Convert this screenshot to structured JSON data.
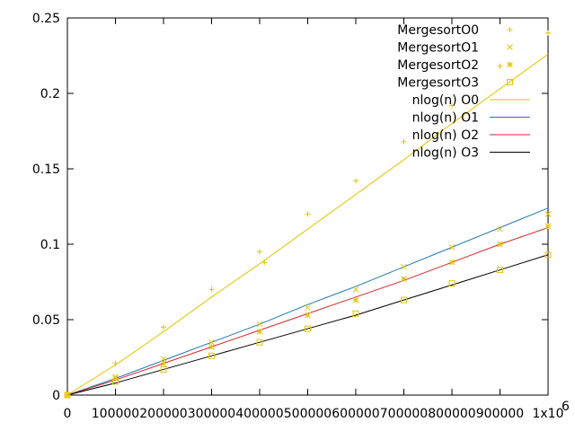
{
  "chart_data": {
    "type": "scatter",
    "title": "",
    "xlabel": "",
    "ylabel": "",
    "xlim": [
      0,
      1000000
    ],
    "ylim": [
      0,
      0.25
    ],
    "x_ticks": [
      0,
      100000,
      200000,
      300000,
      400000,
      500000,
      600000,
      700000,
      800000,
      900000,
      1000000
    ],
    "x_tick_labels": [
      "0",
      "100000",
      "200000",
      "300000",
      "400000",
      "500000",
      "600000",
      "700000",
      "800000",
      "900000",
      "1x10"
    ],
    "x_exponent_label": "6",
    "y_ticks": [
      0,
      0.05,
      0.1,
      0.15,
      0.2,
      0.25
    ],
    "y_tick_labels": [
      "0",
      "0.05",
      "0.1",
      "0.15",
      "0.2",
      "0.25"
    ],
    "grid": false,
    "legend_position": "top-right",
    "series": [
      {
        "name": "MergesortO0",
        "kind": "points",
        "marker": "plus",
        "color": "#e6c300",
        "x": [
          0,
          100000,
          200000,
          300000,
          400000,
          410000,
          500000,
          600000,
          700000,
          800000,
          900000,
          1000000
        ],
        "y": [
          0,
          0.021,
          0.045,
          0.07,
          0.095,
          0.088,
          0.12,
          0.142,
          0.168,
          0.192,
          0.218,
          0.24
        ]
      },
      {
        "name": "MergesortO1",
        "kind": "points",
        "marker": "cross",
        "color": "#e6c300",
        "x": [
          0,
          100000,
          200000,
          300000,
          400000,
          500000,
          600000,
          700000,
          800000,
          900000,
          1000000
        ],
        "y": [
          0,
          0.012,
          0.024,
          0.035,
          0.047,
          0.058,
          0.07,
          0.085,
          0.098,
          0.11,
          0.12
        ]
      },
      {
        "name": "MergesortO2",
        "kind": "points",
        "marker": "asterisk",
        "color": "#e6c300",
        "x": [
          0,
          100000,
          200000,
          300000,
          400000,
          500000,
          600000,
          700000,
          800000,
          900000,
          1000000
        ],
        "y": [
          0,
          0.011,
          0.021,
          0.032,
          0.042,
          0.053,
          0.063,
          0.077,
          0.088,
          0.1,
          0.112
        ]
      },
      {
        "name": "MergesortO3",
        "kind": "points",
        "marker": "square",
        "color": "#e6c300",
        "x": [
          0,
          100000,
          200000,
          300000,
          400000,
          500000,
          600000,
          700000,
          800000,
          900000,
          1000000
        ],
        "y": [
          0,
          0.009,
          0.017,
          0.026,
          0.035,
          0.044,
          0.054,
          0.063,
          0.074,
          0.083,
          0.093
        ]
      },
      {
        "name": "nlog(n) O0",
        "kind": "line",
        "color": "#e6c300",
        "x": [
          0,
          100000,
          200000,
          300000,
          400000,
          500000,
          600000,
          700000,
          800000,
          900000,
          1000000
        ],
        "y": [
          0,
          0.02,
          0.042,
          0.065,
          0.087,
          0.11,
          0.133,
          0.156,
          0.18,
          0.203,
          0.226
        ]
      },
      {
        "name": "nlog(n) O1",
        "kind": "line",
        "color": "#1f77b4",
        "x": [
          0,
          100000,
          200000,
          300000,
          400000,
          500000,
          600000,
          700000,
          800000,
          900000,
          1000000
        ],
        "y": [
          0,
          0.011,
          0.023,
          0.035,
          0.047,
          0.06,
          0.072,
          0.085,
          0.098,
          0.111,
          0.124
        ]
      },
      {
        "name": "nlog(n) O2",
        "kind": "line",
        "color": "#d62728",
        "x": [
          0,
          100000,
          200000,
          300000,
          400000,
          500000,
          600000,
          700000,
          800000,
          900000,
          1000000
        ],
        "y": [
          0,
          0.01,
          0.021,
          0.032,
          0.043,
          0.054,
          0.065,
          0.076,
          0.088,
          0.1,
          0.111
        ]
      },
      {
        "name": "nlog(n) O3",
        "kind": "line",
        "color": "#000000",
        "x": [
          0,
          100000,
          200000,
          300000,
          400000,
          500000,
          600000,
          700000,
          800000,
          900000,
          1000000
        ],
        "y": [
          0,
          0.008,
          0.017,
          0.026,
          0.035,
          0.044,
          0.053,
          0.063,
          0.073,
          0.083,
          0.093
        ]
      }
    ]
  }
}
